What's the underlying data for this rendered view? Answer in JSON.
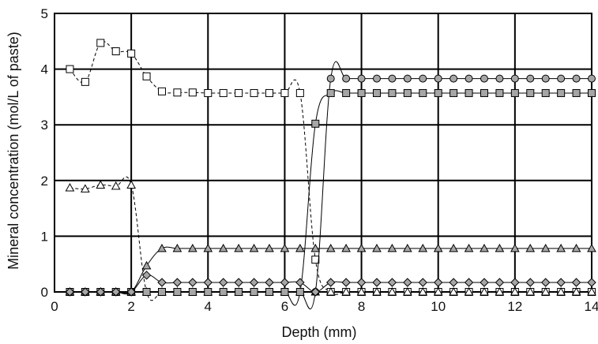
{
  "chart_data": {
    "type": "line",
    "title": "",
    "xlabel": "Depth (mm)",
    "ylabel": "Mineral concentration (mol/L of paste)",
    "xlim": [
      0,
      14
    ],
    "ylim": [
      0,
      5
    ],
    "xticks": [
      0,
      2,
      4,
      6,
      8,
      10,
      12,
      14
    ],
    "yticks": [
      0,
      1,
      2,
      3,
      4,
      5
    ],
    "grid": true,
    "legend": "none",
    "series": [
      {
        "marker": "square-open",
        "line_style": "dashed",
        "points": [
          [
            0.4,
            4.0
          ],
          [
            0.8,
            3.77
          ],
          [
            1.2,
            4.47
          ],
          [
            1.6,
            4.32
          ],
          [
            2.0,
            4.28
          ],
          [
            2.4,
            3.87
          ],
          [
            2.8,
            3.6
          ],
          [
            3.2,
            3.58
          ],
          [
            3.6,
            3.58
          ],
          [
            4.0,
            3.57
          ],
          [
            4.4,
            3.57
          ],
          [
            4.8,
            3.57
          ],
          [
            5.2,
            3.57
          ],
          [
            5.6,
            3.57
          ],
          [
            6.0,
            3.57
          ],
          [
            6.4,
            3.57
          ],
          [
            6.8,
            0.58
          ],
          [
            7.2,
            0.0
          ],
          [
            7.6,
            0.0
          ],
          [
            8.0,
            0.0
          ],
          [
            8.4,
            0.0
          ],
          [
            8.8,
            0.0
          ],
          [
            9.2,
            0.0
          ],
          [
            9.6,
            0.0
          ],
          [
            10.0,
            0.0
          ],
          [
            10.4,
            0.0
          ],
          [
            10.8,
            0.0
          ],
          [
            11.2,
            0.0
          ],
          [
            11.6,
            0.0
          ],
          [
            12.0,
            0.0
          ],
          [
            12.4,
            0.0
          ],
          [
            12.8,
            0.0
          ],
          [
            13.2,
            0.0
          ],
          [
            13.6,
            0.0
          ],
          [
            14.0,
            0.0
          ]
        ]
      },
      {
        "marker": "triangle-open",
        "line_style": "dashed",
        "points": [
          [
            0.4,
            1.87
          ],
          [
            0.8,
            1.85
          ],
          [
            1.2,
            1.92
          ],
          [
            1.6,
            1.9
          ],
          [
            2.0,
            1.92
          ],
          [
            2.4,
            0.0
          ],
          [
            2.8,
            0.0
          ],
          [
            3.2,
            0.0
          ],
          [
            3.6,
            0.0
          ],
          [
            4.0,
            0.0
          ],
          [
            4.4,
            0.0
          ],
          [
            4.8,
            0.0
          ],
          [
            5.2,
            0.0
          ],
          [
            5.6,
            0.0
          ],
          [
            6.0,
            0.0
          ],
          [
            6.4,
            0.0
          ],
          [
            6.8,
            0.0
          ],
          [
            7.2,
            0.0
          ],
          [
            7.6,
            0.0
          ],
          [
            8.0,
            0.0
          ],
          [
            8.4,
            0.0
          ],
          [
            8.8,
            0.0
          ],
          [
            9.2,
            0.0
          ],
          [
            9.6,
            0.0
          ],
          [
            10.0,
            0.0
          ],
          [
            10.4,
            0.0
          ],
          [
            10.8,
            0.0
          ],
          [
            11.2,
            0.0
          ],
          [
            11.6,
            0.0
          ],
          [
            12.0,
            0.0
          ],
          [
            12.4,
            0.0
          ],
          [
            12.8,
            0.0
          ],
          [
            13.2,
            0.0
          ],
          [
            13.6,
            0.0
          ],
          [
            14.0,
            0.0
          ]
        ]
      },
      {
        "marker": "circle-filled",
        "line_style": "solid",
        "points": [
          [
            0.4,
            0.0
          ],
          [
            0.8,
            0.0
          ],
          [
            1.2,
            0.0
          ],
          [
            1.6,
            0.0
          ],
          [
            2.0,
            0.0
          ],
          [
            2.4,
            0.0
          ],
          [
            2.8,
            0.0
          ],
          [
            3.2,
            0.0
          ],
          [
            3.6,
            0.0
          ],
          [
            4.0,
            0.0
          ],
          [
            4.4,
            0.0
          ],
          [
            4.8,
            0.0
          ],
          [
            5.2,
            0.0
          ],
          [
            5.6,
            0.0
          ],
          [
            6.0,
            0.0
          ],
          [
            6.4,
            0.0
          ],
          [
            6.8,
            0.0
          ],
          [
            7.2,
            3.83
          ],
          [
            7.6,
            3.83
          ],
          [
            8.0,
            3.83
          ],
          [
            8.4,
            3.83
          ],
          [
            8.8,
            3.83
          ],
          [
            9.2,
            3.83
          ],
          [
            9.6,
            3.83
          ],
          [
            10.0,
            3.83
          ],
          [
            10.4,
            3.83
          ],
          [
            10.8,
            3.83
          ],
          [
            11.2,
            3.83
          ],
          [
            11.6,
            3.83
          ],
          [
            12.0,
            3.83
          ],
          [
            12.4,
            3.83
          ],
          [
            12.8,
            3.83
          ],
          [
            13.2,
            3.83
          ],
          [
            13.6,
            3.83
          ],
          [
            14.0,
            3.83
          ]
        ]
      },
      {
        "marker": "square-filled",
        "line_style": "solid",
        "points": [
          [
            0.4,
            0.0
          ],
          [
            0.8,
            0.0
          ],
          [
            1.2,
            0.0
          ],
          [
            1.6,
            0.0
          ],
          [
            2.0,
            0.0
          ],
          [
            2.4,
            0.0
          ],
          [
            2.8,
            0.0
          ],
          [
            3.2,
            0.0
          ],
          [
            3.6,
            0.0
          ],
          [
            4.0,
            0.0
          ],
          [
            4.4,
            0.0
          ],
          [
            4.8,
            0.0
          ],
          [
            5.2,
            0.0
          ],
          [
            5.6,
            0.0
          ],
          [
            6.0,
            0.0
          ],
          [
            6.4,
            0.0
          ],
          [
            6.8,
            3.02
          ],
          [
            7.2,
            3.57
          ],
          [
            7.6,
            3.57
          ],
          [
            8.0,
            3.57
          ],
          [
            8.4,
            3.57
          ],
          [
            8.8,
            3.57
          ],
          [
            9.2,
            3.57
          ],
          [
            9.6,
            3.57
          ],
          [
            10.0,
            3.57
          ],
          [
            10.4,
            3.57
          ],
          [
            10.8,
            3.57
          ],
          [
            11.2,
            3.57
          ],
          [
            11.6,
            3.57
          ],
          [
            12.0,
            3.57
          ],
          [
            12.4,
            3.57
          ],
          [
            12.8,
            3.57
          ],
          [
            13.2,
            3.57
          ],
          [
            13.6,
            3.57
          ],
          [
            14.0,
            3.57
          ]
        ]
      },
      {
        "marker": "triangle-filled",
        "line_style": "solid",
        "points": [
          [
            0.4,
            0.0
          ],
          [
            0.8,
            0.0
          ],
          [
            1.2,
            0.0
          ],
          [
            1.6,
            0.0
          ],
          [
            2.0,
            0.0
          ],
          [
            2.4,
            0.47
          ],
          [
            2.8,
            0.78
          ],
          [
            3.2,
            0.78
          ],
          [
            3.6,
            0.78
          ],
          [
            4.0,
            0.78
          ],
          [
            4.4,
            0.78
          ],
          [
            4.8,
            0.78
          ],
          [
            5.2,
            0.78
          ],
          [
            5.6,
            0.78
          ],
          [
            6.0,
            0.78
          ],
          [
            6.4,
            0.78
          ],
          [
            6.8,
            0.78
          ],
          [
            7.2,
            0.78
          ],
          [
            7.6,
            0.78
          ],
          [
            8.0,
            0.78
          ],
          [
            8.4,
            0.78
          ],
          [
            8.8,
            0.78
          ],
          [
            9.2,
            0.78
          ],
          [
            9.6,
            0.78
          ],
          [
            10.0,
            0.78
          ],
          [
            10.4,
            0.78
          ],
          [
            10.8,
            0.78
          ],
          [
            11.2,
            0.78
          ],
          [
            11.6,
            0.78
          ],
          [
            12.0,
            0.78
          ],
          [
            12.4,
            0.78
          ],
          [
            12.8,
            0.78
          ],
          [
            13.2,
            0.78
          ],
          [
            13.6,
            0.78
          ],
          [
            14.0,
            0.78
          ]
        ]
      },
      {
        "marker": "diamond-filled",
        "line_style": "solid",
        "points": [
          [
            0.4,
            0.0
          ],
          [
            0.8,
            0.0
          ],
          [
            1.2,
            0.0
          ],
          [
            1.6,
            0.0
          ],
          [
            2.0,
            0.0
          ],
          [
            2.4,
            0.3
          ],
          [
            2.8,
            0.17
          ],
          [
            3.2,
            0.17
          ],
          [
            3.6,
            0.17
          ],
          [
            4.0,
            0.17
          ],
          [
            4.4,
            0.17
          ],
          [
            4.8,
            0.17
          ],
          [
            5.2,
            0.17
          ],
          [
            5.6,
            0.17
          ],
          [
            6.0,
            0.17
          ],
          [
            6.4,
            0.17
          ],
          [
            6.8,
            0.0
          ],
          [
            7.2,
            0.17
          ],
          [
            7.6,
            0.17
          ],
          [
            8.0,
            0.17
          ],
          [
            8.4,
            0.17
          ],
          [
            8.8,
            0.17
          ],
          [
            9.2,
            0.17
          ],
          [
            9.6,
            0.17
          ],
          [
            10.0,
            0.17
          ],
          [
            10.4,
            0.17
          ],
          [
            10.8,
            0.17
          ],
          [
            11.2,
            0.17
          ],
          [
            11.6,
            0.17
          ],
          [
            12.0,
            0.17
          ],
          [
            12.4,
            0.17
          ],
          [
            12.8,
            0.17
          ],
          [
            13.2,
            0.17
          ],
          [
            13.6,
            0.17
          ],
          [
            14.0,
            0.17
          ]
        ]
      }
    ]
  },
  "colors": {
    "marker_fill": "#a6a6a6",
    "open_fill": "#ffffff",
    "line": "#000000",
    "grid": "#000000"
  }
}
